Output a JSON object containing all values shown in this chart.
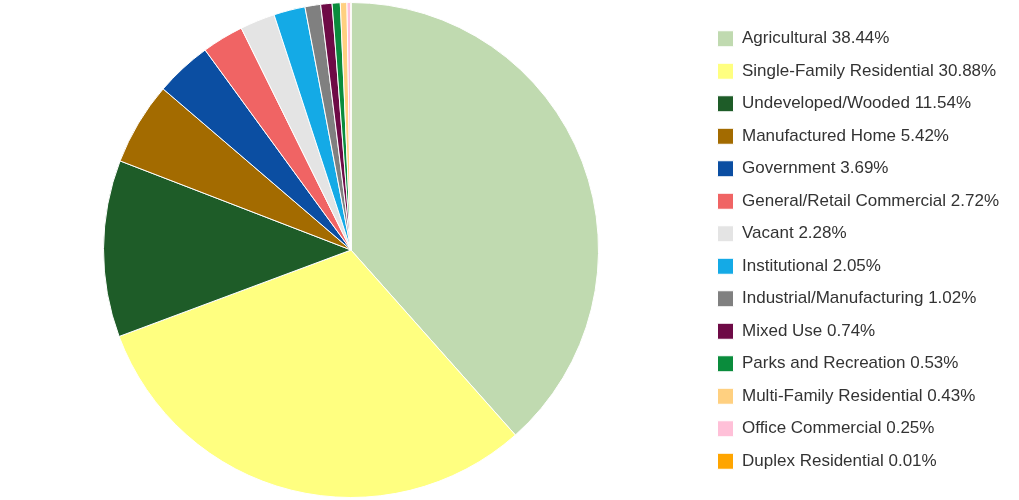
{
  "chart_data": {
    "type": "pie",
    "legend": "right",
    "categories": [
      "Agricultural",
      "Single-Family Residential",
      "Undeveloped/Wooded",
      "Manufactured Home",
      "Government",
      "General/Retail Commercial",
      "Vacant",
      "Institutional",
      "Industrial/Manufacturing",
      "Mixed Use",
      "Parks and Recreation",
      "Multi-Family Residential",
      "Office Commercial",
      "Duplex Residential"
    ],
    "values": [
      38.44,
      30.88,
      11.54,
      5.42,
      3.69,
      2.72,
      2.28,
      2.05,
      1.02,
      0.74,
      0.53,
      0.43,
      0.25,
      0.01
    ],
    "value_labels": [
      "38.44%",
      "30.88%",
      "11.54%",
      "5.42%",
      "3.69%",
      "2.72%",
      "2.28%",
      "2.05%",
      "1.02%",
      "0.74%",
      "0.53%",
      "0.43%",
      "0.25%",
      "0.01%"
    ],
    "colors": [
      "#c0dab0",
      "#ffff80",
      "#1e5c28",
      "#a36b00",
      "#0b4ea2",
      "#f06464",
      "#e4e4e4",
      "#14aae6",
      "#808080",
      "#6e0a46",
      "#0a8c3c",
      "#ffd080",
      "#ffc0d8",
      "#ffa500"
    ]
  }
}
